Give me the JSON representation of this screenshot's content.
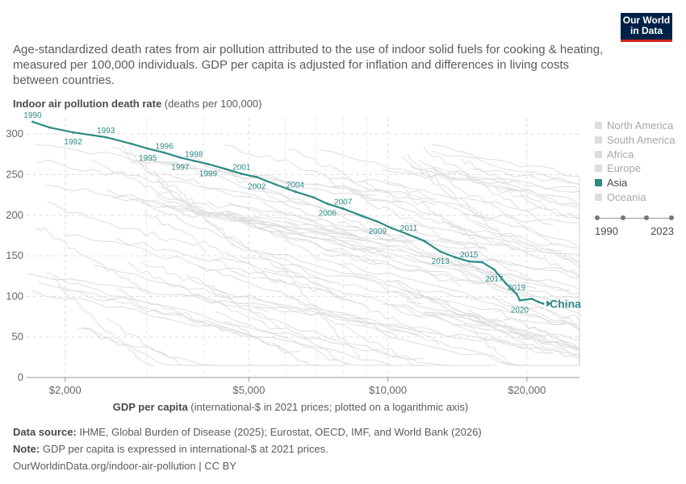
{
  "header": {
    "subtitle": "Age-standardized death rates from air pollution attributed to the use of indoor solid fuels for cooking & heating, measured per 100,000 individuals. GDP per capita is adjusted for inflation and differences in living costs between countries.",
    "logo_line1": "Our World",
    "logo_line2": "in Data"
  },
  "chart_data": {
    "type": "scatter",
    "connected": true,
    "ylabel_bold": "Indoor air pollution death rate",
    "ylabel_unit": " (deaths per 100,000)",
    "xlabel_bold": "GDP per capita",
    "xlabel_unit": " (international-$ in 2021 prices; plotted on a logarithmic axis)",
    "x_scale": "log",
    "xlim": [
      1650,
      26000
    ],
    "ylim": [
      0,
      320
    ],
    "x_ticks": [
      {
        "value": 2000,
        "label": "$2,000"
      },
      {
        "value": 5000,
        "label": "$5,000"
      },
      {
        "value": 10000,
        "label": "$10,000"
      },
      {
        "value": 20000,
        "label": "$20,000"
      }
    ],
    "x_minor_gridlines": [
      3000,
      4000,
      6000,
      7000,
      8000,
      9000,
      30000
    ],
    "y_ticks": [
      0,
      50,
      100,
      150,
      200,
      250,
      300
    ],
    "grid": true,
    "highlight_color": "#2c8c84",
    "background_color": "#dddddd",
    "series": [
      {
        "name": "China",
        "points": [
          {
            "year": "1990",
            "x": 1700,
            "y": 315,
            "labeled": true
          },
          {
            "year": "1991",
            "x": 1850,
            "y": 308,
            "labeled": false
          },
          {
            "year": "1992",
            "x": 2080,
            "y": 302,
            "labeled": true
          },
          {
            "year": "1993",
            "x": 2450,
            "y": 296,
            "labeled": true
          },
          {
            "year": "1994",
            "x": 2780,
            "y": 288,
            "labeled": false
          },
          {
            "year": "1995",
            "x": 3020,
            "y": 282,
            "labeled": true
          },
          {
            "year": "1996",
            "x": 3280,
            "y": 277,
            "labeled": true
          },
          {
            "year": "1997",
            "x": 3550,
            "y": 271,
            "labeled": true
          },
          {
            "year": "1998",
            "x": 3800,
            "y": 267,
            "labeled": true
          },
          {
            "year": "1999",
            "x": 4080,
            "y": 263,
            "labeled": true
          },
          {
            "year": "2000",
            "x": 4450,
            "y": 257,
            "labeled": false
          },
          {
            "year": "2001",
            "x": 4820,
            "y": 251,
            "labeled": true
          },
          {
            "year": "2002",
            "x": 5200,
            "y": 247,
            "labeled": true
          },
          {
            "year": "2003",
            "x": 5700,
            "y": 238,
            "labeled": false
          },
          {
            "year": "2004",
            "x": 6300,
            "y": 229,
            "labeled": true
          },
          {
            "year": "2005",
            "x": 6900,
            "y": 222,
            "labeled": false
          },
          {
            "year": "2006",
            "x": 7400,
            "y": 214,
            "labeled": true
          },
          {
            "year": "2007",
            "x": 8000,
            "y": 208,
            "labeled": true
          },
          {
            "year": "2008",
            "x": 8800,
            "y": 199,
            "labeled": false
          },
          {
            "year": "2009",
            "x": 9500,
            "y": 192,
            "labeled": true
          },
          {
            "year": "2010",
            "x": 10200,
            "y": 184,
            "labeled": false
          },
          {
            "year": "2011",
            "x": 11100,
            "y": 176,
            "labeled": true
          },
          {
            "year": "2012",
            "x": 12000,
            "y": 168,
            "labeled": false
          },
          {
            "year": "2013",
            "x": 13000,
            "y": 155,
            "labeled": true
          },
          {
            "year": "2014",
            "x": 14000,
            "y": 148,
            "labeled": false
          },
          {
            "year": "2015",
            "x": 15000,
            "y": 143,
            "labeled": true
          },
          {
            "year": "2016",
            "x": 16000,
            "y": 142,
            "labeled": false
          },
          {
            "year": "2017",
            "x": 17000,
            "y": 133,
            "labeled": true
          },
          {
            "year": "2018",
            "x": 18000,
            "y": 116,
            "labeled": false
          },
          {
            "year": "2019",
            "x": 19000,
            "y": 103,
            "labeled": true
          },
          {
            "year": "2020",
            "x": 19300,
            "y": 95,
            "labeled": true
          },
          {
            "year": "2021",
            "x": 20500,
            "y": 97,
            "labeled": false
          },
          {
            "year": "2022",
            "x": 21200,
            "y": 93,
            "labeled": false
          },
          {
            "year": "2023",
            "x": 21700,
            "y": 91,
            "labeled": false
          }
        ]
      }
    ],
    "entity_label": "China"
  },
  "legend": {
    "items": [
      {
        "label": "North America",
        "active": false
      },
      {
        "label": "South America",
        "active": false
      },
      {
        "label": "Africa",
        "active": false
      },
      {
        "label": "Europe",
        "active": false
      },
      {
        "label": "Asia",
        "active": true
      },
      {
        "label": "Oceania",
        "active": false
      }
    ]
  },
  "timeline": {
    "start": "1990",
    "end": "2023"
  },
  "footer": {
    "source_label": "Data source:",
    "source_text": " IHME, Global Burden of Disease (2025); Eurostat, OECD, IMF, and World Bank (2026)",
    "note_label": "Note:",
    "note_text": " GDP per capita is expressed in international-$ at 2021 prices.",
    "url": "OurWorldinData.org/indoor-air-pollution | CC BY"
  }
}
